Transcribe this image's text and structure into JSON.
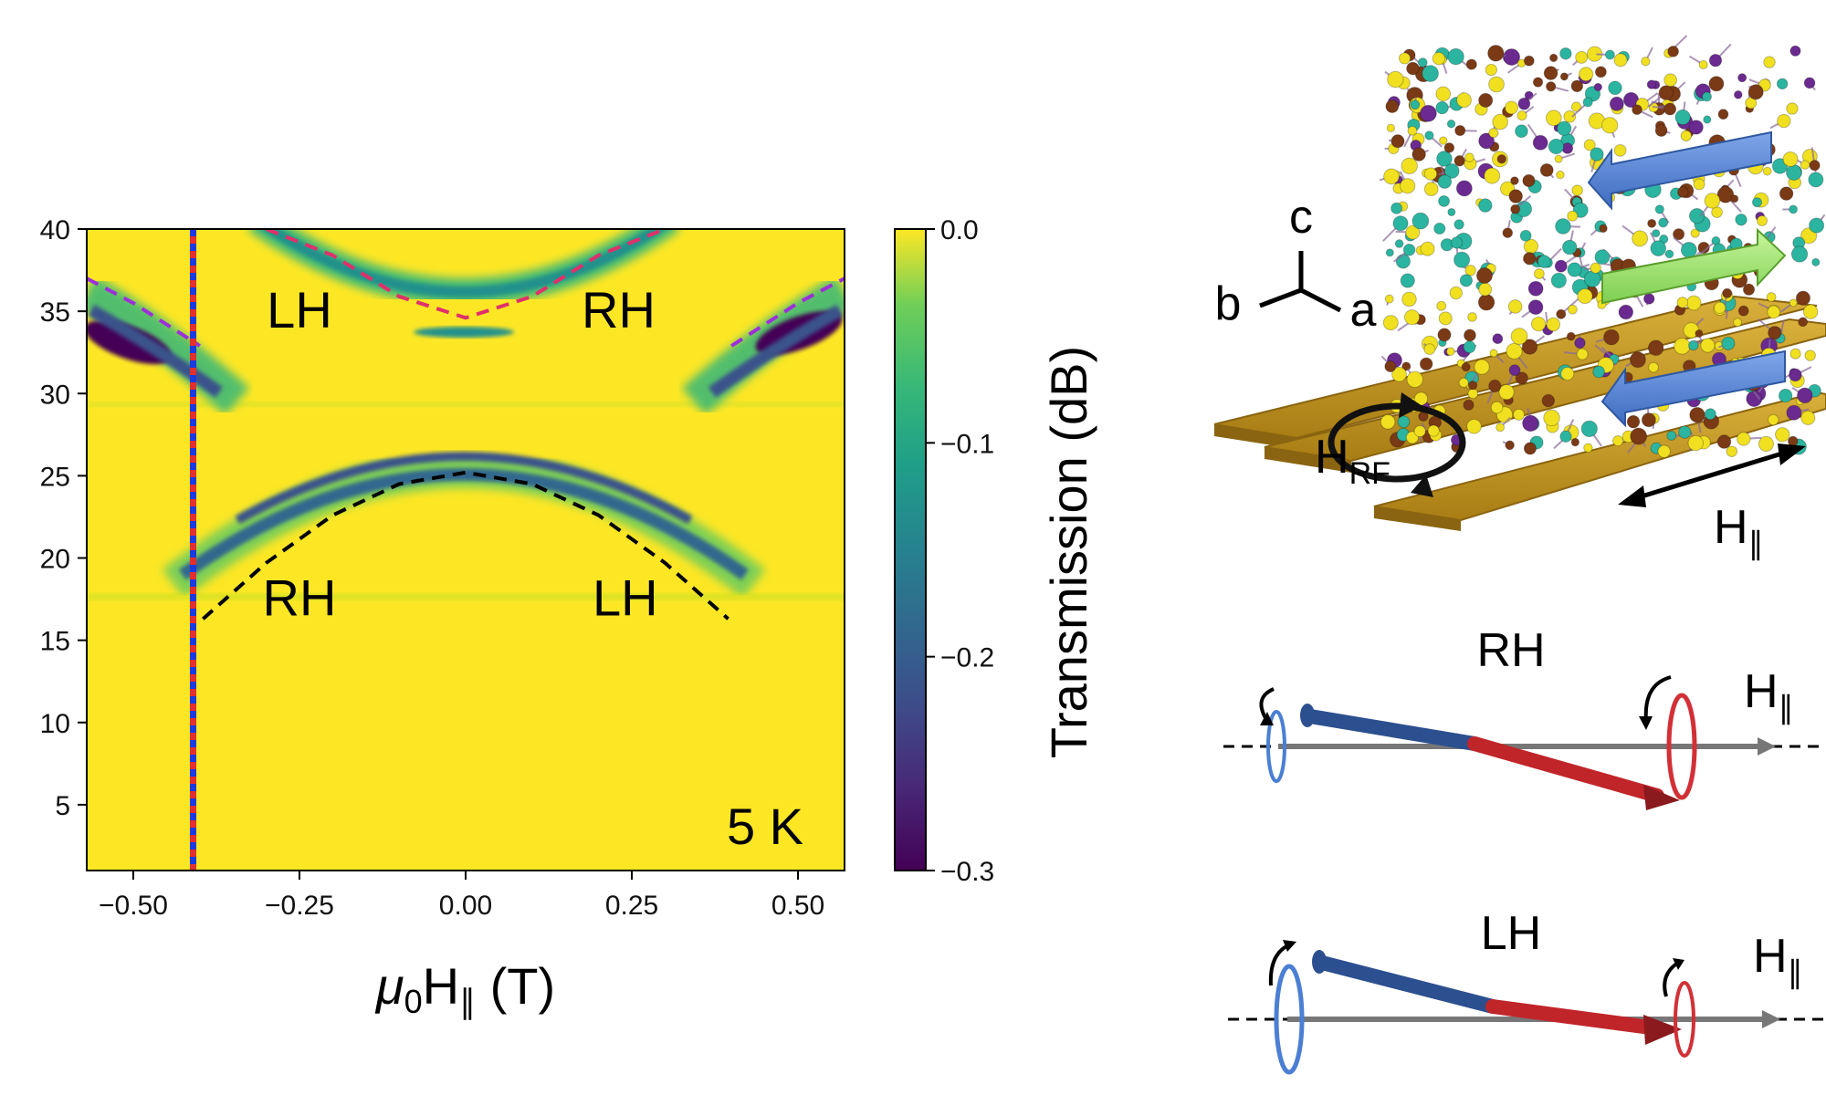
{
  "chart_data": {
    "type": "heatmap",
    "xlabel_main": "μ",
    "xlabel_sub": "0",
    "xlabel_rest": "H",
    "xlabel_par": "∥",
    "xlabel_unit": "(T)",
    "xlim": [
      -0.57,
      0.57
    ],
    "ylim": [
      1,
      40
    ],
    "x_ticks": [
      -0.5,
      -0.25,
      0.0,
      0.25,
      0.5
    ],
    "x_tick_labels": [
      "−0.50",
      "−0.25",
      "0.00",
      "0.25",
      "0.50"
    ],
    "y_ticks": [
      5,
      10,
      15,
      20,
      25,
      30,
      35,
      40
    ],
    "y_tick_labels": [
      "5",
      "10",
      "15",
      "20",
      "25",
      "30",
      "35",
      "40"
    ],
    "colorbar": {
      "label": "Transmission (dB)",
      "range": [
        -0.3,
        0.0
      ],
      "ticks": [
        0.0,
        -0.1,
        -0.2,
        -0.3
      ],
      "tick_labels": [
        "0.0",
        "−0.1",
        "−0.2",
        "−0.3"
      ],
      "colormap": "viridis"
    },
    "temperature_label": "5 K",
    "mode_labels": [
      {
        "text": "LH",
        "x": -0.25,
        "y": 34
      },
      {
        "text": "RH",
        "x": 0.23,
        "y": 34
      },
      {
        "text": "RH",
        "x": -0.25,
        "y": 16.5
      },
      {
        "text": "LH",
        "x": 0.24,
        "y": 16.5
      }
    ],
    "fits": [
      {
        "color": "#e0306a",
        "points": [
          [
            -0.3,
            40
          ],
          [
            -0.2,
            38.4
          ],
          [
            -0.1,
            35.9
          ],
          [
            0.0,
            34.6
          ],
          [
            0.1,
            35.9
          ],
          [
            0.2,
            38.4
          ],
          [
            0.3,
            40
          ]
        ]
      },
      {
        "color": "#000000",
        "points": [
          [
            -0.395,
            16.3
          ],
          [
            -0.3,
            19.7
          ],
          [
            -0.2,
            22.6
          ],
          [
            -0.1,
            24.5
          ],
          [
            0.0,
            25.2
          ],
          [
            0.1,
            24.5
          ],
          [
            0.2,
            22.6
          ],
          [
            0.3,
            19.7
          ],
          [
            0.395,
            16.3
          ]
        ]
      },
      {
        "color": "#9b30d9",
        "points": [
          [
            -0.57,
            37.0
          ],
          [
            -0.5,
            35.5
          ],
          [
            -0.4,
            32.9
          ]
        ]
      },
      {
        "color": "#9b30d9",
        "points": [
          [
            0.4,
            32.9
          ],
          [
            0.5,
            35.5
          ],
          [
            0.57,
            37.0
          ]
        ]
      }
    ],
    "vertical_marker_x": -0.41,
    "colors": {
      "background": "#fde725",
      "band": "#21918c",
      "deep": "#440154",
      "mid": "#3b528b"
    }
  },
  "schematic": {
    "axes_labels": {
      "c": "c",
      "b": "b",
      "a": "a"
    },
    "rf_label_main": "H",
    "rf_label_sub": "RF",
    "field_label_main": "H",
    "field_label_sub": "∥",
    "rh_label": "RH",
    "lh_label": "LH",
    "colors": {
      "gold": "#c9a227",
      "blue_arrow": "#4a7fd4",
      "green_arrow": "#9be06a",
      "spin_blue": "#2c4f8f",
      "spin_red": "#c0252a",
      "arrow_gray": "#777777"
    }
  }
}
